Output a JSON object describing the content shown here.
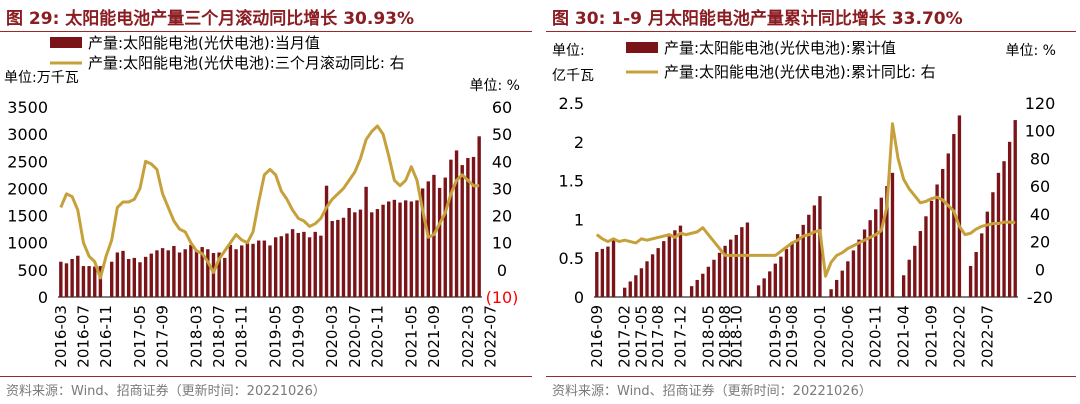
{
  "charts": [
    {
      "id": "left",
      "title": "图 29:  太阳能电池产量三个月滚动同比增长 30.93%",
      "source": "资料来源：Wind、招商证券（更新时间：20221026）",
      "left_unit": "单位:万千瓦",
      "right_unit": "单位:  %",
      "legend": [
        "产量:太阳能电池(光伏电池):当月值",
        "产量:太阳能电池(光伏电池):三个月滚动同比:  右"
      ],
      "left_ticks": [
        "0",
        "500",
        "1000",
        "1500",
        "2000",
        "2500",
        "3000",
        "3500"
      ],
      "right_ticks": [
        "(10)",
        "0",
        "10",
        "20",
        "30",
        "40",
        "50",
        "60"
      ],
      "x_ticks": [
        "2016-03",
        "2016-07",
        "2016-11",
        "2017-05",
        "2017-09",
        "2018-03",
        "2018-07",
        "2018-11",
        "2019-05",
        "2019-09",
        "2020-03",
        "2020-07",
        "2020-11",
        "2021-05",
        "2021-09",
        "2022-03",
        "2022-07"
      ]
    },
    {
      "id": "right",
      "title": "图 30:  1-9 月太阳能电池产量累计同比增长 33.70%",
      "source": "资料来源：Wind、招商证券（更新时间：20221026）",
      "left_unit_1": "单位:",
      "left_unit_2": "亿千瓦",
      "right_unit": "单位:  %",
      "legend": [
        "产量:太阳能电池(光伏电池):累计值",
        "产量:太阳能电池(光伏电池):累计同比:  右"
      ],
      "left_ticks": [
        "0",
        "0.5",
        "1",
        "1.5",
        "2",
        "2.5"
      ],
      "right_ticks": [
        "-20",
        "0",
        "20",
        "40",
        "60",
        "80",
        "100",
        "120"
      ],
      "x_ticks": [
        "2016-09",
        "2017-02",
        "2017-05",
        "2017-08",
        "2017-12",
        "2018-05",
        "2018-08",
        "2018-10",
        "2019-05",
        "2019-08",
        "2020-01",
        "2020-06",
        "2020-11",
        "2021-04",
        "2021-09",
        "2022-02",
        "2022-07"
      ]
    }
  ],
  "colors": {
    "bar": "#7a1418",
    "line": "#c6a13b",
    "title": "#8a1c22",
    "negative_tick": "#ff0000"
  },
  "chart_data": [
    {
      "type": "bar",
      "title": "图 29:  太阳能电池产量三个月滚动同比增长 30.93%",
      "ylabel": "万千瓦",
      "y2label": "%",
      "ylim": [
        0,
        3500
      ],
      "y2lim": [
        -10,
        60
      ],
      "grid": false,
      "legend": "top",
      "start_month": "2016-03",
      "series": [
        {
          "name": "产量:太阳能电池(光伏电池):当月值",
          "axis": "left",
          "type": "bar",
          "values": [
            650,
            620,
            700,
            760,
            570,
            570,
            560,
            570,
            0,
            650,
            820,
            850,
            700,
            720,
            640,
            740,
            800,
            860,
            900,
            860,
            940,
            820,
            880,
            960,
            860,
            920,
            880,
            810,
            820,
            720,
            960,
            880,
            950,
            990,
            980,
            1040,
            1040,
            950,
            1100,
            1120,
            1170,
            1250,
            1180,
            1200,
            1100,
            1200,
            1130,
            2050,
            1400,
            1420,
            1460,
            1640,
            1560,
            1610,
            2030,
            1560,
            1620,
            1700,
            1760,
            1790,
            1740,
            1780,
            1760,
            1780,
            2000,
            2130,
            2250,
            2010,
            2200,
            2530,
            2700,
            2430,
            2560,
            2580,
            2960
          ]
        },
        {
          "name": "产量:太阳能电池(光伏电池):三个月滚动同比:  右",
          "axis": "right",
          "type": "line",
          "values": [
            23,
            28,
            27,
            22,
            10,
            5,
            3,
            -3,
            5,
            11,
            23,
            25,
            25,
            26,
            30,
            40,
            39,
            37,
            28,
            23,
            18,
            15,
            14,
            10,
            7,
            6,
            3,
            -1,
            4,
            7,
            10,
            13,
            11,
            10,
            14,
            25,
            35,
            37,
            35,
            29,
            26,
            22,
            19,
            18,
            16,
            17,
            19,
            23,
            26,
            28,
            30,
            33,
            36,
            41,
            48,
            51,
            53,
            50,
            42,
            33,
            31,
            33,
            38,
            33,
            22,
            12,
            13,
            17,
            21,
            28,
            33,
            35,
            33,
            31,
            31
          ]
        }
      ]
    },
    {
      "type": "bar",
      "title": "图 30:  1-9 月太阳能电池产量累计同比增长 33.70%",
      "ylabel": "亿千瓦",
      "y2label": "%",
      "ylim": [
        0,
        2.5
      ],
      "y2lim": [
        -20,
        120
      ],
      "grid": false,
      "legend": "top",
      "start_month": "2016-09",
      "series": [
        {
          "name": "产量:太阳能电池(光伏电池):累计值",
          "axis": "left",
          "type": "bar",
          "values": [
            0.58,
            0.62,
            0.65,
            0.76,
            0,
            0.12,
            0.2,
            0.28,
            0.37,
            0.46,
            0.55,
            0.63,
            0.72,
            0.78,
            0.86,
            0.92,
            0,
            0.14,
            0.22,
            0.3,
            0.39,
            0.48,
            0.57,
            0.66,
            0.74,
            0.8,
            0.9,
            0.96,
            0,
            0.15,
            0.24,
            0.33,
            0.43,
            0.52,
            0.62,
            0.71,
            0.81,
            0.93,
            1.06,
            1.18,
            1.3,
            0,
            0.1,
            0.22,
            0.34,
            0.46,
            0.6,
            0.74,
            0.87,
            0.99,
            1.13,
            1.28,
            1.43,
            1.6,
            0,
            0.28,
            0.48,
            0.66,
            0.85,
            1.04,
            1.24,
            1.45,
            1.65,
            1.85,
            2.1,
            2.34,
            0,
            0.4,
            0.58,
            0.82,
            1.1,
            1.35,
            1.6,
            1.75,
            2.0,
            2.28
          ]
        },
        {
          "name": "产量:太阳能电池(光伏电池):累计同比:  右",
          "axis": "right",
          "type": "line",
          "values": [
            25,
            22,
            20,
            22,
            20,
            21,
            20,
            19,
            22,
            21,
            22,
            23,
            24,
            25,
            23,
            26,
            25,
            26,
            27,
            30,
            25,
            20,
            15,
            10,
            10,
            10,
            10,
            10,
            10,
            10,
            10,
            10,
            10,
            13,
            16,
            19,
            21,
            24,
            25,
            27,
            28,
            -5,
            5,
            10,
            12,
            15,
            17,
            19,
            21,
            23,
            25,
            28,
            45,
            105,
            80,
            65,
            58,
            53,
            48,
            49,
            51,
            52,
            50,
            46,
            42,
            31,
            25,
            26,
            29,
            31,
            32,
            33,
            33,
            34,
            34,
            33.7
          ]
        }
      ]
    }
  ]
}
